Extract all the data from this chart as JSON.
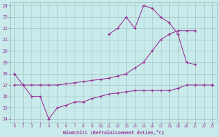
{
  "xlabel": "Windchill (Refroidissement éolien,°C)",
  "x": [
    0,
    1,
    2,
    3,
    4,
    5,
    6,
    7,
    8,
    9,
    10,
    11,
    12,
    13,
    14,
    15,
    16,
    17,
    18,
    19,
    20,
    21,
    22,
    23
  ],
  "line1": [
    18,
    17,
    16,
    16,
    14,
    15,
    15.2,
    15.5,
    15.5,
    15.8,
    16,
    16.2,
    16.3,
    16.4,
    16.5,
    16.5,
    16.5,
    16.5,
    16.5,
    16.7,
    17,
    17,
    17,
    17
  ],
  "line2": [
    17,
    17,
    17,
    17,
    17,
    17,
    17.1,
    17.2,
    17.3,
    17.4,
    17.5,
    17.6,
    17.8,
    18.0,
    18.5,
    19.0,
    20.0,
    21.0,
    21.5,
    21.8,
    21.8,
    21.8,
    null,
    17
  ],
  "line3": [
    18,
    null,
    null,
    null,
    null,
    null,
    null,
    null,
    null,
    null,
    null,
    21.5,
    22,
    23,
    22,
    24,
    23.8,
    23,
    22.5,
    21.5,
    19,
    18.8,
    null,
    17
  ],
  "ylim_min": 14,
  "ylim_max": 24,
  "yticks": [
    14,
    15,
    16,
    17,
    18,
    19,
    20,
    21,
    22,
    23,
    24
  ],
  "xticks": [
    0,
    1,
    2,
    3,
    4,
    5,
    6,
    7,
    8,
    9,
    10,
    11,
    12,
    13,
    14,
    15,
    16,
    17,
    18,
    19,
    20,
    21,
    22,
    23
  ],
  "line_color": "#993399",
  "bg_color": "#c8eaea",
  "grid_color": "#9bbaba"
}
